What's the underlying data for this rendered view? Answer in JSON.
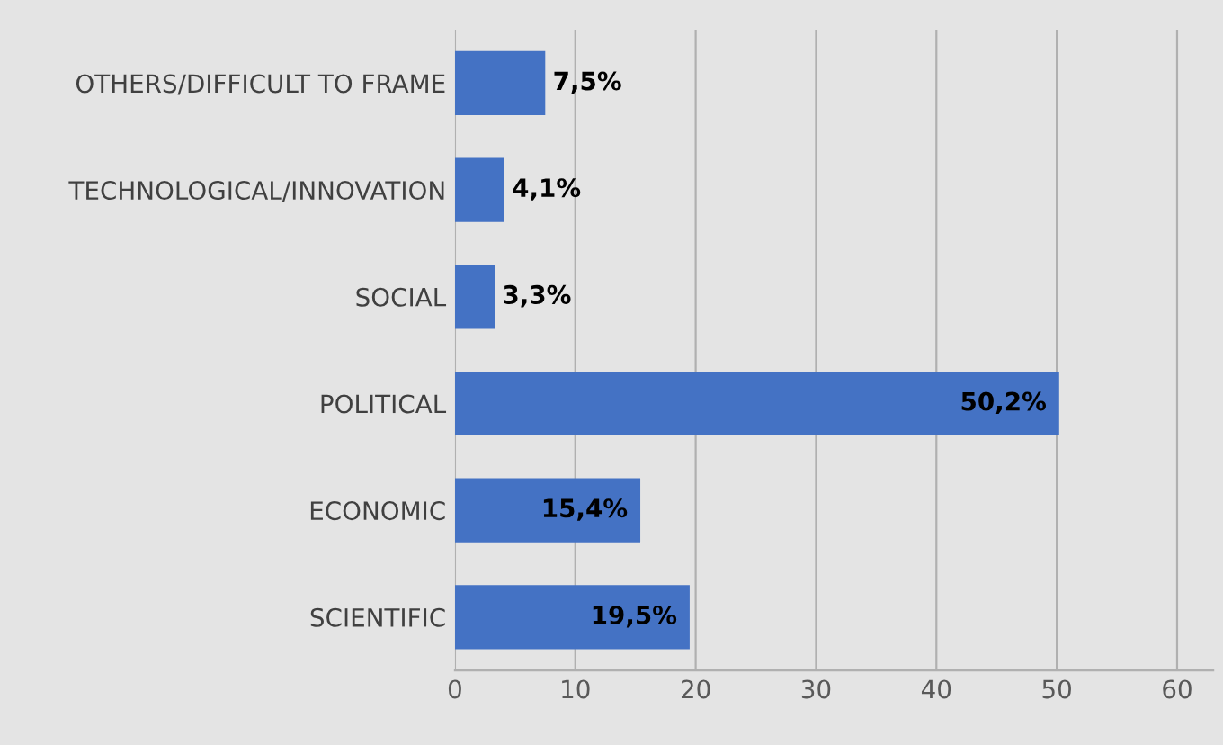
{
  "chart_data": {
    "type": "bar",
    "orientation": "horizontal",
    "categories": [
      "OTHERS/DIFFICULT TO FRAME",
      "TECHNOLOGICAL/INNOVATION",
      "SOCIAL",
      "POLITICAL",
      "ECONOMIC",
      "SCIENTIFIC"
    ],
    "values": [
      7.5,
      4.1,
      3.3,
      50.2,
      15.4,
      19.5
    ],
    "value_labels": [
      "7,5%",
      "4,1%",
      "3,3%",
      "50,2%",
      "15,4%",
      "19,5%"
    ],
    "color": "#4472c4",
    "xlim": [
      0,
      63
    ],
    "xticks": [
      0,
      10,
      20,
      30,
      40,
      50,
      60
    ],
    "grid": "x"
  }
}
